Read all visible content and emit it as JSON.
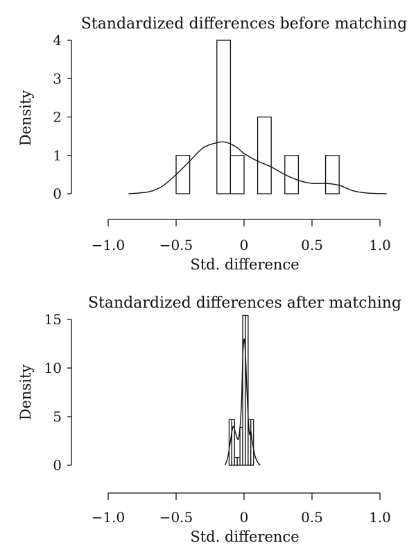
{
  "chart_data": [
    {
      "type": "histogram",
      "title": "Standardized differences before matching",
      "xlabel": "Std. difference",
      "ylabel": "Density",
      "xlim": [
        -1.0,
        1.0
      ],
      "ylim": [
        0,
        4
      ],
      "x_ticks": [
        "−1.0",
        "−0.5",
        "0",
        "0.5",
        "1.0"
      ],
      "y_ticks": [
        "0",
        "1",
        "2",
        "3",
        "4"
      ],
      "bins": [
        {
          "start": -0.5,
          "end": -0.4,
          "density": 1
        },
        {
          "start": -0.2,
          "end": -0.1,
          "density": 4
        },
        {
          "start": -0.1,
          "end": 0.0,
          "density": 1
        },
        {
          "start": 0.1,
          "end": 0.2,
          "density": 2
        },
        {
          "start": 0.3,
          "end": 0.4,
          "density": 1
        },
        {
          "start": 0.6,
          "end": 0.7,
          "density": 1
        }
      ],
      "density_curve": {
        "x": [
          -0.85,
          -0.7,
          -0.6,
          -0.5,
          -0.4,
          -0.3,
          -0.2,
          -0.15,
          -0.1,
          -0.05,
          0.0,
          0.1,
          0.2,
          0.3,
          0.4,
          0.5,
          0.6,
          0.7,
          0.8,
          0.9,
          1.05
        ],
        "y": [
          0.0,
          0.05,
          0.2,
          0.5,
          0.85,
          1.2,
          1.33,
          1.35,
          1.3,
          1.2,
          1.05,
          0.85,
          0.7,
          0.5,
          0.35,
          0.27,
          0.27,
          0.22,
          0.08,
          0.02,
          0.0
        ]
      },
      "grid": false
    },
    {
      "type": "histogram",
      "title": "Standardized differences after matching",
      "xlabel": "Std. difference",
      "ylabel": "Density",
      "xlim": [
        -1.0,
        1.0
      ],
      "ylim": [
        0,
        15
      ],
      "x_ticks": [
        "−1.0",
        "−0.5",
        "0",
        "0.5",
        "1.0"
      ],
      "y_ticks": [
        "0",
        "5",
        "10",
        "15"
      ],
      "bins": [
        {
          "start": -0.11,
          "end": -0.09,
          "density": 4.7
        },
        {
          "start": -0.09,
          "end": -0.07,
          "density": 4.7
        },
        {
          "start": -0.07,
          "end": -0.05,
          "density": 0.8
        },
        {
          "start": -0.05,
          "end": -0.03,
          "density": 0.8
        },
        {
          "start": -0.03,
          "end": -0.01,
          "density": 3.9
        },
        {
          "start": -0.01,
          "end": 0.01,
          "density": 15.4
        },
        {
          "start": 0.01,
          "end": 0.03,
          "density": 15.4
        },
        {
          "start": 0.03,
          "end": 0.05,
          "density": 4.7
        },
        {
          "start": 0.05,
          "end": 0.07,
          "density": 4.7
        }
      ],
      "density_curve": {
        "x": [
          -0.14,
          -0.12,
          -0.1,
          -0.08,
          -0.06,
          -0.04,
          -0.02,
          -0.01,
          0.0,
          0.01,
          0.02,
          0.03,
          0.04,
          0.05,
          0.06,
          0.08,
          0.1,
          0.12
        ],
        "y": [
          0.0,
          0.8,
          2.5,
          4.0,
          3.2,
          2.8,
          6.0,
          11.0,
          13.0,
          11.5,
          8.0,
          5.0,
          3.2,
          3.5,
          2.5,
          1.0,
          0.3,
          0.0
        ]
      },
      "grid": false
    }
  ]
}
